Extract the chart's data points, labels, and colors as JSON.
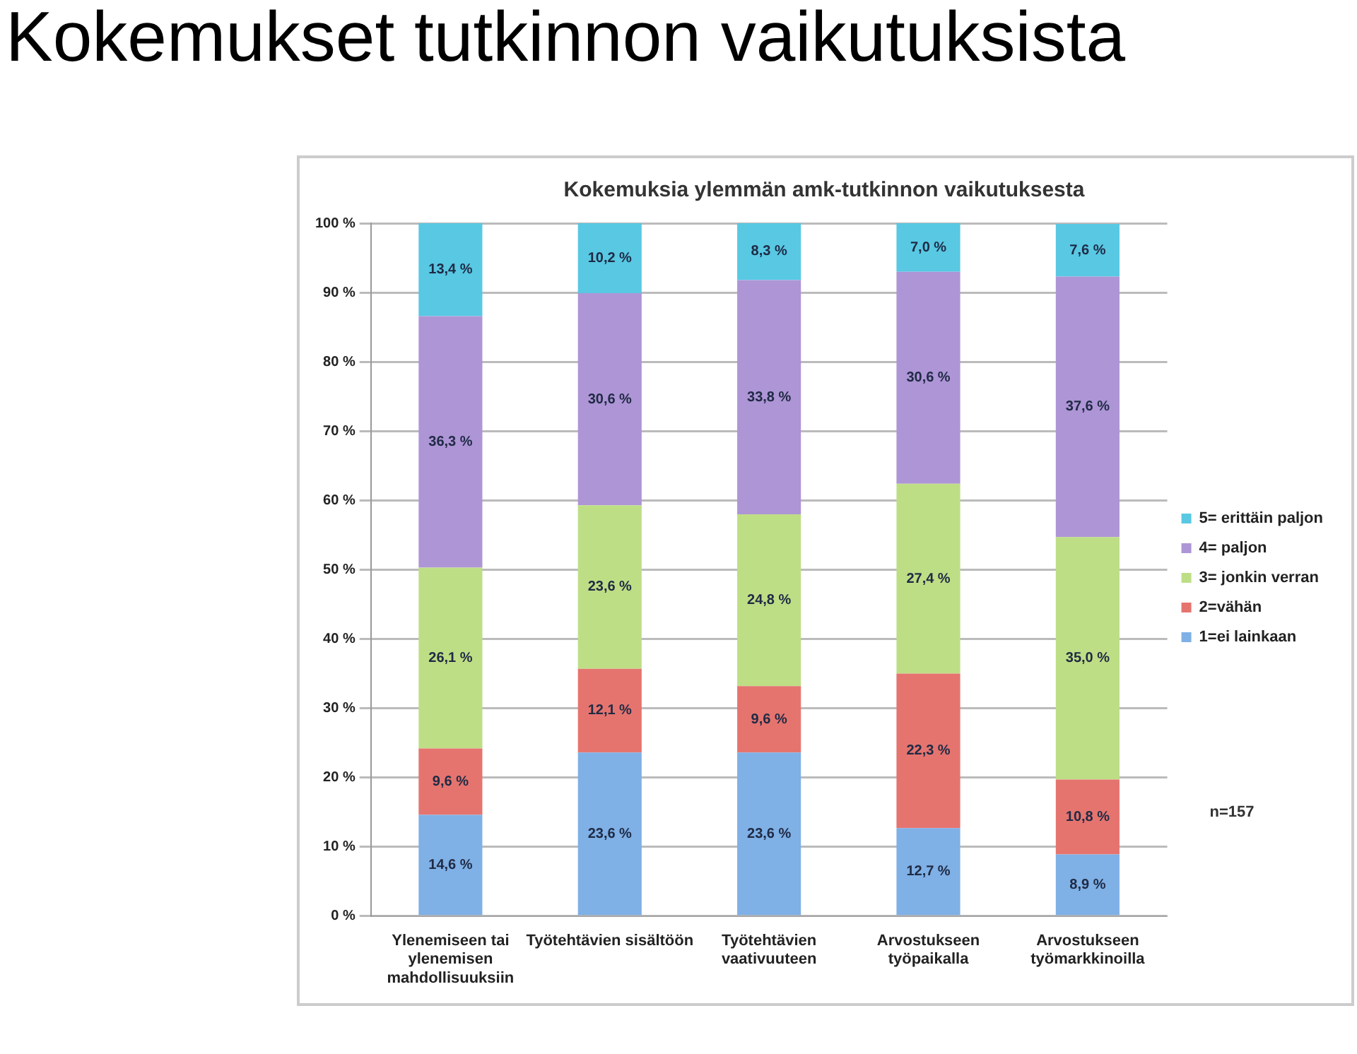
{
  "chart_data": {
    "type": "bar",
    "title": "Kokemuksia ylemmän amk-tutkinnon vaikutuksesta",
    "subtitle": "Kokemukset tutkinnon vaikutuksista",
    "categories": [
      [
        "Ylenemiseen tai",
        "ylenemisen",
        "mahdollisuuksiin"
      ],
      [
        "Työtehtävien sisältöön"
      ],
      [
        "Työtehtävien",
        "vaativuuteen"
      ],
      [
        "Arvostukseen",
        "työpaikalla"
      ],
      [
        "Arvostukseen",
        "työmarkkinoilla"
      ]
    ],
    "stacked": true,
    "series": [
      {
        "name": "1=ei lainkaan",
        "color": "#7fb0e6",
        "values": [
          14.6,
          23.6,
          23.6,
          12.7,
          8.9
        ],
        "value_labels": [
          "14,6 %",
          "23,6 %",
          "23,6 %",
          "12,7 %",
          "8,9 %"
        ]
      },
      {
        "name": "2=vähän",
        "color": "#e5746f",
        "values": [
          9.6,
          12.1,
          9.6,
          22.3,
          10.8
        ],
        "value_labels": [
          "9,6 %",
          "12,1 %",
          "9,6 %",
          "22,3 %",
          "10,8 %"
        ]
      },
      {
        "name": "3= jonkin verran",
        "color": "#bede86",
        "values": [
          26.1,
          23.6,
          24.8,
          27.4,
          35.0
        ],
        "value_labels": [
          "26,1 %",
          "23,6 %",
          "24,8 %",
          "27,4 %",
          "35,0 %"
        ]
      },
      {
        "name": "4= paljon",
        "color": "#ae95d6",
        "values": [
          36.3,
          30.6,
          33.8,
          30.6,
          37.6
        ],
        "value_labels": [
          "36,3 %",
          "30,6 %",
          "33,8 %",
          "30,6 %",
          "37,6 %"
        ]
      },
      {
        "name": "5= erittäin paljon",
        "color": "#58c8e3",
        "values": [
          13.4,
          10.2,
          8.3,
          7.0,
          7.6
        ],
        "value_labels": [
          "13,4 %",
          "10,2 %",
          "8,3 %",
          "7,0 %",
          "7,6 %"
        ]
      }
    ],
    "ylim": [
      0,
      100
    ],
    "yticks": [
      {
        "value": 0,
        "label": "0 %"
      },
      {
        "value": 10,
        "label": "10 %"
      },
      {
        "value": 20,
        "label": "20 %"
      },
      {
        "value": 30,
        "label": "30 %"
      },
      {
        "value": 40,
        "label": "40 %"
      },
      {
        "value": 50,
        "label": "50 %"
      },
      {
        "value": 60,
        "label": "60 %"
      },
      {
        "value": 70,
        "label": "70 %"
      },
      {
        "value": 80,
        "label": "80 %"
      },
      {
        "value": 90,
        "label": "90 %"
      },
      {
        "value": 100,
        "label": "100 %"
      }
    ],
    "grid": "y",
    "legend": "right",
    "annotations": [
      "n=157"
    ]
  }
}
